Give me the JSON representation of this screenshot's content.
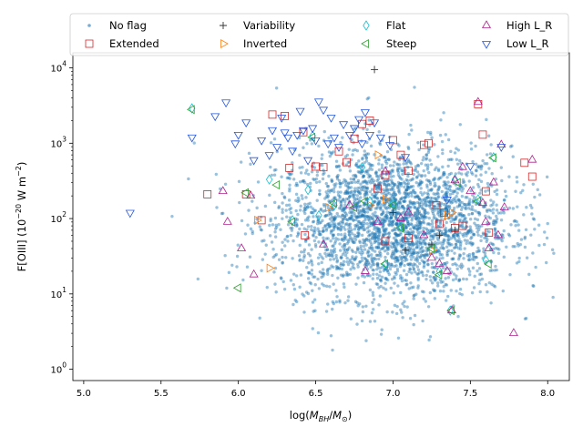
{
  "chart_data": {
    "type": "scatter",
    "xlabel": "log(M_BH/M_⊙)",
    "ylabel": "F[OIII] (10^-20 W m^-2)",
    "xlim": [
      4.93,
      8.14
    ],
    "ylim_log10": [
      -0.15,
      4.2
    ],
    "yscale": "log",
    "x_ticks": [
      5.0,
      5.5,
      6.0,
      6.5,
      7.0,
      7.5,
      8.0
    ],
    "x_tick_labels": [
      "5.0",
      "5.5",
      "6.0",
      "6.5",
      "7.0",
      "7.5",
      "8.0"
    ],
    "y_ticks": [
      1,
      10,
      100,
      1000,
      10000
    ],
    "y_tick_labels": [
      {
        "base": "10",
        "exp": "0"
      },
      {
        "base": "10",
        "exp": "1"
      },
      {
        "base": "10",
        "exp": "2"
      },
      {
        "base": "10",
        "exp": "3"
      },
      {
        "base": "10",
        "exp": "4"
      }
    ],
    "background_population": {
      "name": "No flag",
      "color": "#1f77b4",
      "count": 3000,
      "x_mean": 7.0,
      "x_std": 0.38,
      "log10y_mean": 1.95,
      "log10y_std": 0.5
    },
    "series": [
      {
        "name": "No flag",
        "marker": "dot",
        "color": "#1f77b4",
        "points": []
      },
      {
        "name": "Extended",
        "marker": "square",
        "color": "#d62728",
        "points": [
          [
            5.8,
            210
          ],
          [
            6.05,
            210
          ],
          [
            6.15,
            95
          ],
          [
            6.22,
            2400
          ],
          [
            6.3,
            2300
          ],
          [
            6.33,
            470
          ],
          [
            6.42,
            1400
          ],
          [
            6.43,
            60
          ],
          [
            6.5,
            490
          ],
          [
            6.55,
            480
          ],
          [
            6.65,
            780
          ],
          [
            6.7,
            560
          ],
          [
            6.75,
            1150
          ],
          [
            6.8,
            1800
          ],
          [
            6.85,
            2000
          ],
          [
            6.9,
            250
          ],
          [
            6.95,
            50
          ],
          [
            7.0,
            1100
          ],
          [
            7.05,
            700
          ],
          [
            7.1,
            430
          ],
          [
            7.2,
            950
          ],
          [
            7.23,
            1000
          ],
          [
            7.28,
            150
          ],
          [
            7.33,
            120
          ],
          [
            7.4,
            75
          ],
          [
            7.45,
            80
          ],
          [
            7.55,
            3300
          ],
          [
            7.58,
            1300
          ],
          [
            7.6,
            230
          ],
          [
            7.62,
            65
          ],
          [
            7.85,
            550
          ],
          [
            7.9,
            360
          ],
          [
            6.95,
            380
          ],
          [
            7.3,
            85
          ],
          [
            7.1,
            55
          ]
        ]
      },
      {
        "name": "Variability",
        "marker": "plus",
        "color": "#333333",
        "points": [
          [
            7.08,
            38
          ],
          [
            7.0,
            120
          ],
          [
            7.25,
            45
          ],
          [
            7.4,
            70
          ],
          [
            6.88,
            9500
          ],
          [
            7.3,
            60
          ]
        ]
      },
      {
        "name": "Inverted",
        "marker": "tri-right",
        "color": "#ff7f0e",
        "points": [
          [
            6.2,
            22
          ],
          [
            6.12,
            95
          ],
          [
            6.85,
            150
          ],
          [
            6.9,
            700
          ],
          [
            6.95,
            180
          ],
          [
            7.35,
            110
          ],
          [
            7.25,
            38
          ],
          [
            6.58,
            140
          ],
          [
            7.38,
            120
          ]
        ]
      },
      {
        "name": "Flat",
        "marker": "diamond",
        "color": "#17becf",
        "points": [
          [
            5.7,
            2900
          ],
          [
            6.2,
            330
          ],
          [
            6.35,
            95
          ],
          [
            6.45,
            240
          ],
          [
            6.48,
            1250
          ],
          [
            6.62,
            150
          ],
          [
            6.8,
            480
          ],
          [
            6.85,
            170
          ],
          [
            6.95,
            25
          ],
          [
            7.0,
            160
          ],
          [
            7.05,
            80
          ],
          [
            7.3,
            20
          ],
          [
            7.37,
            6
          ],
          [
            7.4,
            330
          ],
          [
            7.55,
            180
          ],
          [
            7.6,
            28
          ],
          [
            7.65,
            650
          ],
          [
            6.52,
            110
          ]
        ]
      },
      {
        "name": "Steep",
        "marker": "tri-left",
        "color": "#2ca02c",
        "points": [
          [
            5.7,
            2800
          ],
          [
            6.0,
            12
          ],
          [
            6.05,
            220
          ],
          [
            6.25,
            280
          ],
          [
            6.35,
            90
          ],
          [
            6.48,
            1200
          ],
          [
            6.62,
            160
          ],
          [
            6.75,
            140
          ],
          [
            6.82,
            170
          ],
          [
            6.95,
            25
          ],
          [
            7.0,
            150
          ],
          [
            7.05,
            75
          ],
          [
            7.25,
            40
          ],
          [
            7.3,
            18
          ],
          [
            7.38,
            6
          ],
          [
            7.42,
            300
          ],
          [
            7.55,
            170
          ],
          [
            7.62,
            25
          ],
          [
            7.65,
            640
          ]
        ]
      },
      {
        "name": "High L_R",
        "marker": "tri-up",
        "color": "#b0208f",
        "points": [
          [
            5.9,
            230
          ],
          [
            5.93,
            90
          ],
          [
            6.02,
            40
          ],
          [
            6.08,
            200
          ],
          [
            6.1,
            18
          ],
          [
            6.55,
            45
          ],
          [
            6.72,
            150
          ],
          [
            6.82,
            20
          ],
          [
            6.9,
            90
          ],
          [
            6.95,
            420
          ],
          [
            7.05,
            100
          ],
          [
            7.1,
            120
          ],
          [
            7.2,
            60
          ],
          [
            7.25,
            30
          ],
          [
            7.3,
            25
          ],
          [
            7.35,
            20
          ],
          [
            7.38,
            6
          ],
          [
            7.4,
            320
          ],
          [
            7.45,
            480
          ],
          [
            7.5,
            230
          ],
          [
            7.55,
            3500
          ],
          [
            7.58,
            160
          ],
          [
            7.6,
            90
          ],
          [
            7.62,
            40
          ],
          [
            7.65,
            300
          ],
          [
            7.68,
            60
          ],
          [
            7.7,
            950
          ],
          [
            7.72,
            140
          ],
          [
            7.78,
            3
          ],
          [
            7.9,
            600
          ]
        ]
      },
      {
        "name": "Low L_R",
        "marker": "tri-down",
        "color": "#2255dd",
        "points": [
          [
            5.3,
            120
          ],
          [
            5.7,
            1200
          ],
          [
            5.85,
            2300
          ],
          [
            5.92,
            3500
          ],
          [
            5.98,
            1000
          ],
          [
            6.0,
            1300
          ],
          [
            6.05,
            1900
          ],
          [
            6.1,
            600
          ],
          [
            6.15,
            1100
          ],
          [
            6.2,
            700
          ],
          [
            6.22,
            1500
          ],
          [
            6.25,
            900
          ],
          [
            6.28,
            2200
          ],
          [
            6.3,
            1400
          ],
          [
            6.32,
            1200
          ],
          [
            6.35,
            800
          ],
          [
            6.38,
            1300
          ],
          [
            6.4,
            2700
          ],
          [
            6.42,
            1500
          ],
          [
            6.45,
            600
          ],
          [
            6.48,
            1600
          ],
          [
            6.5,
            1100
          ],
          [
            6.52,
            3600
          ],
          [
            6.55,
            2800
          ],
          [
            6.58,
            1000
          ],
          [
            6.6,
            2200
          ],
          [
            6.62,
            1200
          ],
          [
            6.65,
            900
          ],
          [
            6.68,
            1800
          ],
          [
            6.72,
            1300
          ],
          [
            6.75,
            1600
          ],
          [
            6.78,
            2100
          ],
          [
            6.8,
            1000
          ],
          [
            6.82,
            2600
          ],
          [
            6.85,
            1300
          ],
          [
            6.88,
            1900
          ],
          [
            6.92,
            1200
          ],
          [
            6.98,
            950
          ],
          [
            7.08,
            660
          ],
          [
            7.35,
            180
          ],
          [
            7.5,
            500
          ],
          [
            7.7,
            900
          ]
        ]
      }
    ]
  },
  "legend": {
    "placement": "top",
    "items": [
      {
        "label": "No flag",
        "marker": "dot",
        "color": "#1f77b4"
      },
      {
        "label": "Variability",
        "marker": "plus",
        "color": "#333333"
      },
      {
        "label": "Flat",
        "marker": "diamond",
        "color": "#17becf"
      },
      {
        "label": "High L_R",
        "marker": "tri-up",
        "color": "#b0208f"
      },
      {
        "label": "Extended",
        "marker": "square",
        "color": "#d62728"
      },
      {
        "label": "Inverted",
        "marker": "tri-right",
        "color": "#ff7f0e"
      },
      {
        "label": "Steep",
        "marker": "tri-left",
        "color": "#2ca02c"
      },
      {
        "label": "Low L_R",
        "marker": "tri-down",
        "color": "#2255dd"
      }
    ]
  }
}
